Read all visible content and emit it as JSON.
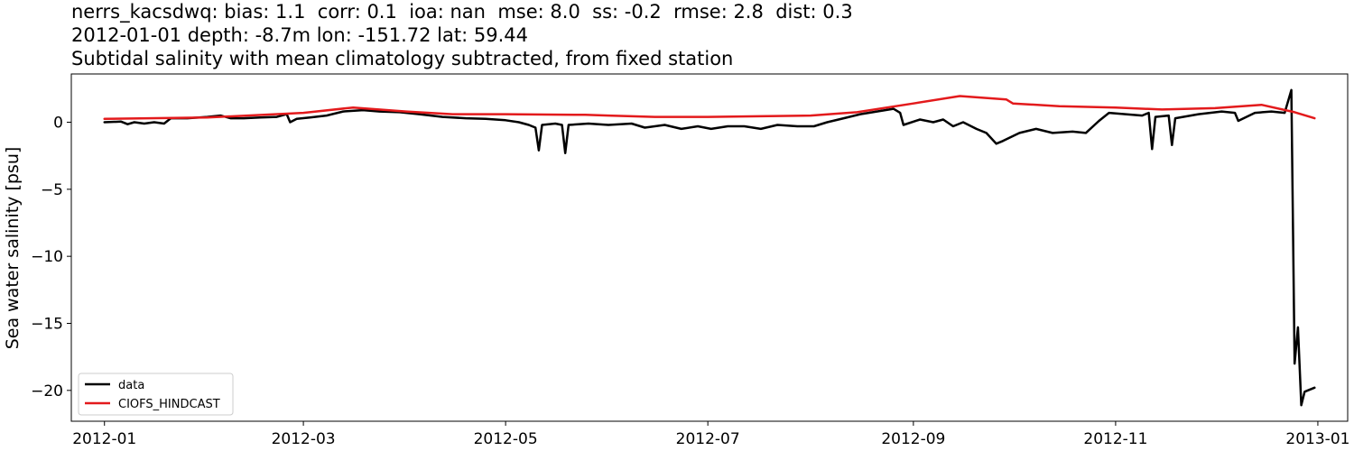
{
  "title_lines": [
    "nerrs_kacsdwq: bias: 1.1  corr: 0.1  ioa: nan  mse: 8.0  ss: -0.2  rmse: 2.8  dist: 0.3",
    "2012-01-01 depth: -8.7m lon: -151.72 lat: 59.44",
    "Subtidal salinity with mean climatology subtracted, from fixed station"
  ],
  "chart_data": {
    "type": "line",
    "title": "nerrs_kacsdwq: bias: 1.1  corr: 0.1  ioa: nan  mse: 8.0  ss: -0.2  rmse: 2.8  dist: 0.3\n2012-01-01 depth: -8.7m lon: -151.72 lat: 59.44\nSubtidal salinity with mean climatology subtracted, from fixed station",
    "xlabel": "",
    "ylabel": "Sea water salinity [psu]",
    "xlim": [
      "2011-12-22",
      "2013-01-10"
    ],
    "ylim": [
      -22.3,
      3.6
    ],
    "x_ticks": [
      "2012-01",
      "2012-03",
      "2012-05",
      "2012-07",
      "2012-09",
      "2012-11",
      "2013-01"
    ],
    "x_tick_dates": [
      "2012-01-01",
      "2012-03-01",
      "2012-05-01",
      "2012-07-01",
      "2012-09-01",
      "2012-11-01",
      "2013-01-01"
    ],
    "y_ticks": [
      0,
      -5,
      -10,
      -15,
      -20
    ],
    "y_tick_labels": [
      "0",
      "−5",
      "−10",
      "−15",
      "−20"
    ],
    "grid": false,
    "legend_position": "lower-left",
    "series": [
      {
        "name": "data",
        "color": "#000000",
        "points": [
          [
            "2012-01-01",
            0.0
          ],
          [
            "2012-01-06",
            0.05
          ],
          [
            "2012-01-08",
            -0.15
          ],
          [
            "2012-01-10",
            0.0
          ],
          [
            "2012-01-13",
            -0.1
          ],
          [
            "2012-01-16",
            0.0
          ],
          [
            "2012-01-19",
            -0.1
          ],
          [
            "2012-01-21",
            0.3
          ],
          [
            "2012-01-26",
            0.3
          ],
          [
            "2012-02-01",
            0.4
          ],
          [
            "2012-02-05",
            0.5
          ],
          [
            "2012-02-08",
            0.3
          ],
          [
            "2012-02-12",
            0.3
          ],
          [
            "2012-02-17",
            0.35
          ],
          [
            "2012-02-22",
            0.4
          ],
          [
            "2012-02-25",
            0.6
          ],
          [
            "2012-02-26",
            0.0
          ],
          [
            "2012-02-28",
            0.25
          ],
          [
            "2012-03-03",
            0.35
          ],
          [
            "2012-03-08",
            0.5
          ],
          [
            "2012-03-13",
            0.8
          ],
          [
            "2012-03-19",
            0.9
          ],
          [
            "2012-03-24",
            0.8
          ],
          [
            "2012-03-30",
            0.75
          ],
          [
            "2012-04-05",
            0.6
          ],
          [
            "2012-04-12",
            0.4
          ],
          [
            "2012-04-19",
            0.3
          ],
          [
            "2012-04-25",
            0.25
          ],
          [
            "2012-05-01",
            0.15
          ],
          [
            "2012-05-05",
            0.0
          ],
          [
            "2012-05-08",
            -0.2
          ],
          [
            "2012-05-10",
            -0.4
          ],
          [
            "2012-05-11",
            -2.1
          ],
          [
            "2012-05-12",
            -0.2
          ],
          [
            "2012-05-16",
            -0.1
          ],
          [
            "2012-05-18",
            -0.2
          ],
          [
            "2012-05-19",
            -2.3
          ],
          [
            "2012-05-20",
            -0.2
          ],
          [
            "2012-05-26",
            -0.1
          ],
          [
            "2012-06-01",
            -0.2
          ],
          [
            "2012-06-08",
            -0.1
          ],
          [
            "2012-06-12",
            -0.4
          ],
          [
            "2012-06-18",
            -0.2
          ],
          [
            "2012-06-23",
            -0.5
          ],
          [
            "2012-06-28",
            -0.3
          ],
          [
            "2012-07-02",
            -0.5
          ],
          [
            "2012-07-07",
            -0.3
          ],
          [
            "2012-07-12",
            -0.3
          ],
          [
            "2012-07-17",
            -0.5
          ],
          [
            "2012-07-22",
            -0.2
          ],
          [
            "2012-07-28",
            -0.3
          ],
          [
            "2012-08-02",
            -0.3
          ],
          [
            "2012-08-06",
            0.0
          ],
          [
            "2012-08-11",
            0.3
          ],
          [
            "2012-08-16",
            0.6
          ],
          [
            "2012-08-21",
            0.8
          ],
          [
            "2012-08-26",
            1.0
          ],
          [
            "2012-08-28",
            0.7
          ],
          [
            "2012-08-29",
            -0.2
          ],
          [
            "2012-09-03",
            0.2
          ],
          [
            "2012-09-07",
            0.0
          ],
          [
            "2012-09-10",
            0.2
          ],
          [
            "2012-09-13",
            -0.3
          ],
          [
            "2012-09-16",
            0.0
          ],
          [
            "2012-09-20",
            -0.5
          ],
          [
            "2012-09-23",
            -0.8
          ],
          [
            "2012-09-26",
            -1.6
          ],
          [
            "2012-09-28",
            -1.4
          ],
          [
            "2012-10-03",
            -0.8
          ],
          [
            "2012-10-08",
            -0.5
          ],
          [
            "2012-10-13",
            -0.8
          ],
          [
            "2012-10-19",
            -0.7
          ],
          [
            "2012-10-23",
            -0.8
          ],
          [
            "2012-10-27",
            0.1
          ],
          [
            "2012-10-30",
            0.7
          ],
          [
            "2012-11-04",
            0.6
          ],
          [
            "2012-11-09",
            0.5
          ],
          [
            "2012-11-11",
            0.7
          ],
          [
            "2012-11-12",
            -2.0
          ],
          [
            "2012-11-13",
            0.4
          ],
          [
            "2012-11-17",
            0.5
          ],
          [
            "2012-11-18",
            -1.7
          ],
          [
            "2012-11-19",
            0.3
          ],
          [
            "2012-11-26",
            0.6
          ],
          [
            "2012-12-03",
            0.8
          ],
          [
            "2012-12-07",
            0.7
          ],
          [
            "2012-12-08",
            0.1
          ],
          [
            "2012-12-13",
            0.7
          ],
          [
            "2012-12-18",
            0.8
          ],
          [
            "2012-12-22",
            0.7
          ],
          [
            "2012-12-24",
            2.4
          ],
          [
            "2012-12-25",
            -18.0
          ],
          [
            "2012-12-26",
            -15.3
          ],
          [
            "2012-12-27",
            -21.1
          ],
          [
            "2012-12-28",
            -20.1
          ],
          [
            "2012-12-29",
            -20.0
          ],
          [
            "2012-12-31",
            -19.8
          ]
        ]
      },
      {
        "name": "CIOFS_HINDCAST",
        "color": "#e31a1c",
        "points": [
          [
            "2012-01-01",
            0.25
          ],
          [
            "2012-02-01",
            0.35
          ],
          [
            "2012-03-01",
            0.7
          ],
          [
            "2012-03-16",
            1.1
          ],
          [
            "2012-04-01",
            0.8
          ],
          [
            "2012-04-15",
            0.6
          ],
          [
            "2012-05-01",
            0.6
          ],
          [
            "2012-05-25",
            0.55
          ],
          [
            "2012-06-01",
            0.5
          ],
          [
            "2012-06-15",
            0.4
          ],
          [
            "2012-07-01",
            0.4
          ],
          [
            "2012-08-01",
            0.5
          ],
          [
            "2012-08-15",
            0.75
          ],
          [
            "2012-09-01",
            1.4
          ],
          [
            "2012-09-15",
            1.95
          ],
          [
            "2012-09-29",
            1.7
          ],
          [
            "2012-10-01",
            1.4
          ],
          [
            "2012-10-15",
            1.2
          ],
          [
            "2012-11-01",
            1.1
          ],
          [
            "2012-11-15",
            0.95
          ],
          [
            "2012-12-01",
            1.05
          ],
          [
            "2012-12-15",
            1.3
          ],
          [
            "2012-12-25",
            0.75
          ],
          [
            "2012-12-31",
            0.3
          ]
        ]
      }
    ]
  }
}
